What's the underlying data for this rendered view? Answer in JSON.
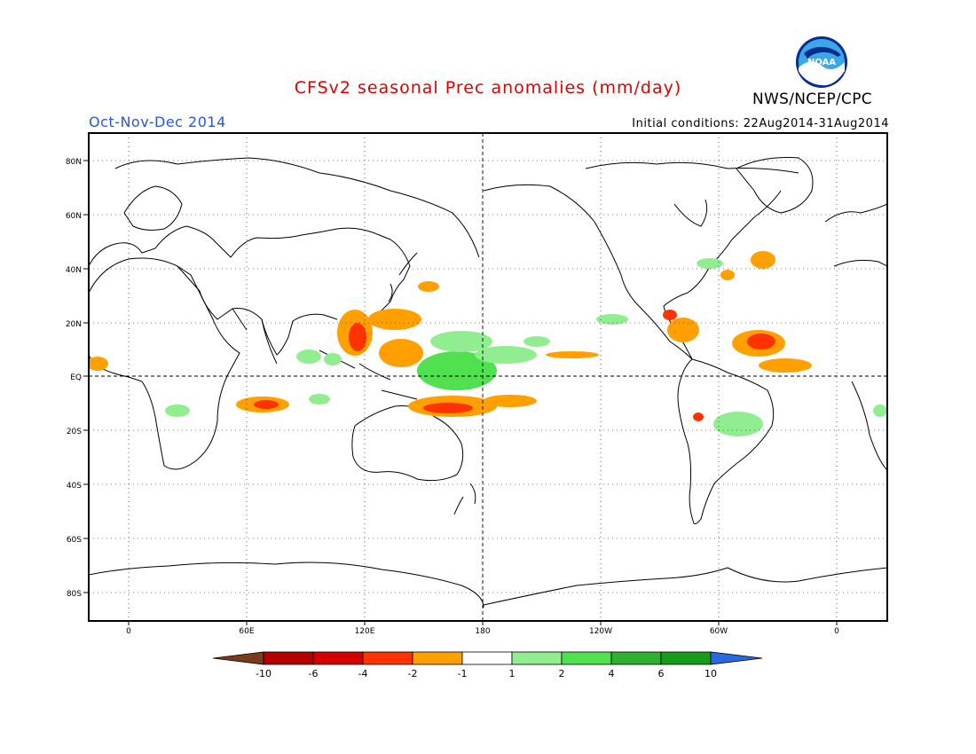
{
  "header": {
    "title": "CFSv2 seasonal Prec anomalies (mm/day)",
    "period": "Oct-Nov-Dec 2014",
    "initial_conditions": "Initial conditions: 22Aug2014-31Aug2014",
    "agency": "NWS/NCEP/CPC",
    "logo_text": "NOAA"
  },
  "map": {
    "lat_labels": [
      "80N",
      "60N",
      "40N",
      "20N",
      "EQ",
      "20S",
      "40S",
      "60S",
      "80S"
    ],
    "lon_labels": [
      "0",
      "60E",
      "120E",
      "180",
      "120W",
      "60W",
      "0"
    ]
  },
  "legend": {
    "ticks": [
      "-10",
      "-6",
      "-4",
      "-2",
      "-1",
      "1",
      "2",
      "4",
      "6",
      "10"
    ],
    "colors": [
      "#7a3b1c",
      "#b30000",
      "#d40000",
      "#ff3300",
      "#ffa000",
      "#ffffff",
      "#90ee90",
      "#50e050",
      "#30b030",
      "#1a9a1a",
      "#2a6adf"
    ]
  },
  "colors": {
    "title": "#e00000",
    "period": "#2a55e0"
  }
}
